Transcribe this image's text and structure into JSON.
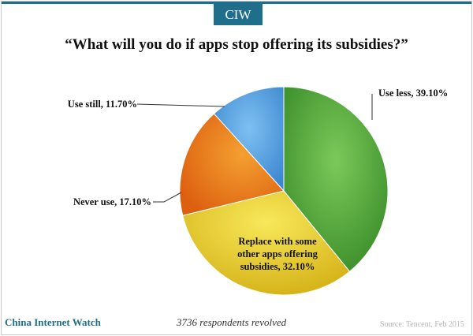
{
  "brand": {
    "logo": "CIW",
    "name": "China Internet Watch"
  },
  "chart_data": {
    "type": "pie",
    "title": "“What will you do if apps stop offering its subsidies?”",
    "slices": [
      {
        "label": "Use less, 39.10%",
        "value": 39.1,
        "color": "#5aaa3c"
      },
      {
        "label": "Replace with some other apps offering subsidies, 32.10%",
        "value": 32.1,
        "color": "#e8cd2e"
      },
      {
        "label": "Never use, 17.10%",
        "value": 17.1,
        "color": "#e97d1a"
      },
      {
        "label": "Use still, 11.70%",
        "value": 11.7,
        "color": "#4a9ee0"
      }
    ],
    "legend": "none",
    "start_angle_deg": 0,
    "direction": "clockwise"
  },
  "note": "3736 respondents revolved",
  "source": "Source: Tencent, Feb 2015"
}
